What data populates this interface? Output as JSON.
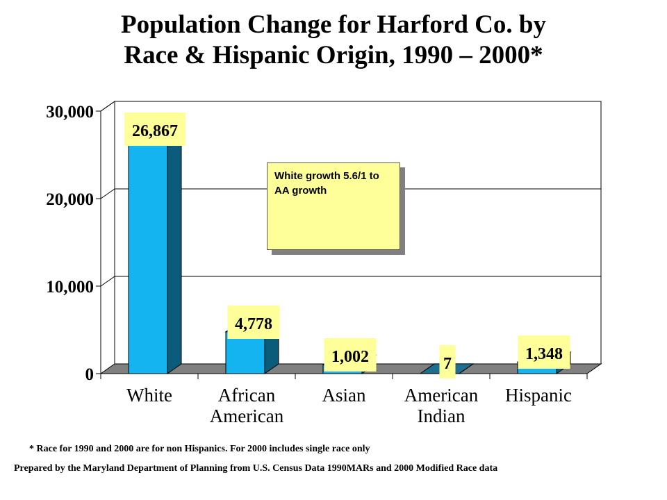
{
  "title": {
    "line1": "Population Change for Harford Co. by",
    "line2": "Race & Hispanic Origin, 1990 – 2000*"
  },
  "chart_data": {
    "type": "bar",
    "categories": [
      [
        "White"
      ],
      [
        "African",
        "American"
      ],
      [
        "Asian"
      ],
      [
        "American",
        "Indian"
      ],
      [
        "Hispanic"
      ]
    ],
    "values": [
      26867,
      4778,
      1002,
      7,
      1348
    ],
    "value_labels": [
      "26,867",
      "4,778",
      "1,002",
      "7",
      "1,348"
    ],
    "ylim": [
      0,
      30000
    ],
    "yticks": [
      0,
      10000,
      20000,
      30000
    ],
    "ytick_labels": [
      "0",
      "10,000",
      "20,000",
      "30,000"
    ],
    "grid": true,
    "style": "3d",
    "colors": {
      "bar_front": "#14b4f0",
      "bar_side": "#0a5c7a",
      "bar_top": "#1e6e90",
      "floor": "#808080",
      "label_bg": "#ffff99"
    }
  },
  "annotation": {
    "text": "White growth 5.6/1 to AA growth"
  },
  "footnote": "* Race for 1990 and 2000 are for non Hispanics. For 2000  includes single race only",
  "source": "Prepared by the Maryland Department of Planning from U.S. Census Data 1990MARs and 2000 Modified Race data"
}
